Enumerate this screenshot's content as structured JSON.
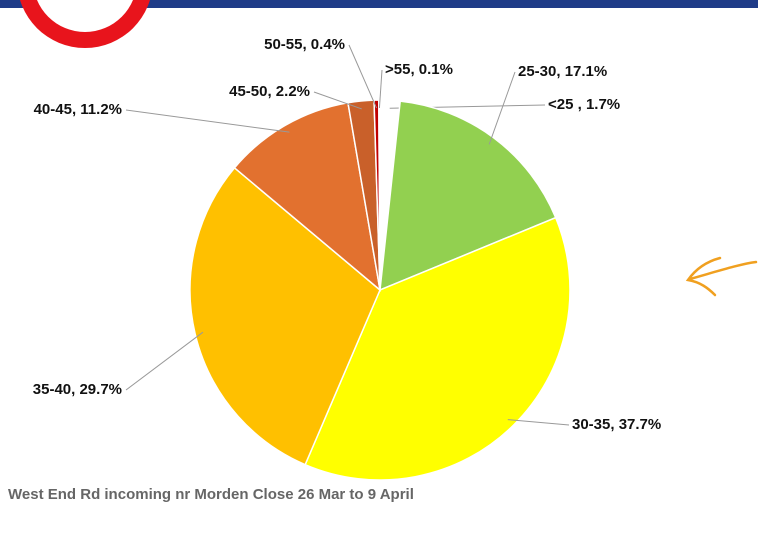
{
  "chart_data": {
    "type": "pie",
    "caption": "West End Rd incoming nr Morden Close 26 Mar to 9 April",
    "labels": [
      "<25 , 1.7%",
      "25-30, 17.1%",
      "30-35, 37.7%",
      "35-40, 29.7%",
      "40-45, 11.2%",
      "45-50, 2.2%",
      "50-55, 0.4%",
      ">55, 0.1%"
    ],
    "values": [
      1.7,
      17.1,
      37.7,
      29.7,
      11.2,
      2.2,
      0.4,
      0.1
    ],
    "colors": [
      "#ffffff",
      "#92d050",
      "#ffff00",
      "#ffc000",
      "#e2712f",
      "#c9602a",
      "#c00000",
      "#7f0000"
    ]
  }
}
